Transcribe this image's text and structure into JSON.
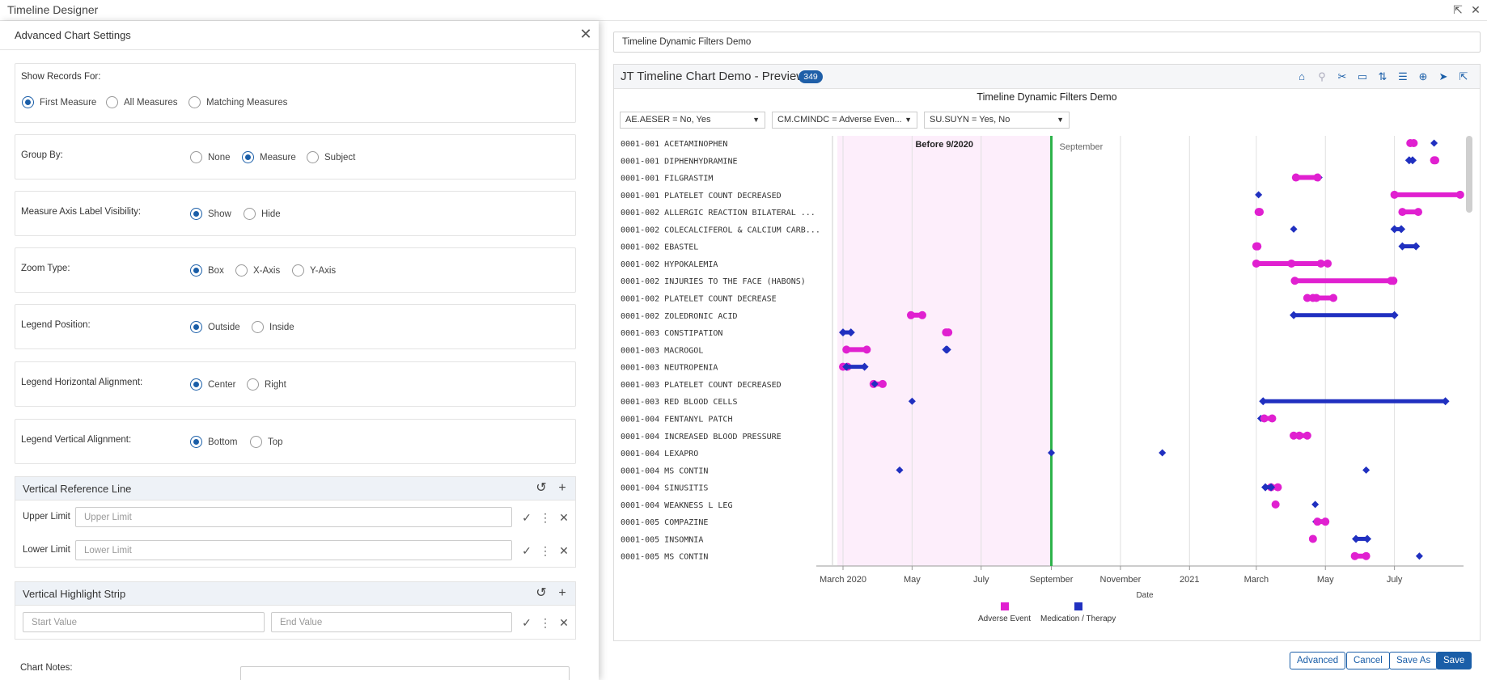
{
  "window": {
    "title": "Timeline Designer",
    "export_icon": "export-icon",
    "close_icon": "close-icon"
  },
  "panel": {
    "title": "Advanced Chart Settings",
    "show_records": {
      "label": "Show Records For:",
      "options": [
        "First Measure",
        "All Measures",
        "Matching Measures"
      ],
      "selected": "First Measure"
    },
    "group_by": {
      "label": "Group By:",
      "options": [
        "None",
        "Measure",
        "Subject"
      ],
      "selected": "Measure"
    },
    "axis_label_visibility": {
      "label": "Measure Axis Label Visibility:",
      "options": [
        "Show",
        "Hide"
      ],
      "selected": "Show"
    },
    "zoom_type": {
      "label": "Zoom Type:",
      "options": [
        "Box",
        "X-Axis",
        "Y-Axis"
      ],
      "selected": "Box"
    },
    "legend_position": {
      "label": "Legend Position:",
      "options": [
        "Outside",
        "Inside"
      ],
      "selected": "Outside"
    },
    "legend_h_align": {
      "label": "Legend Horizontal Alignment:",
      "options": [
        "Center",
        "Right"
      ],
      "selected": "Center"
    },
    "legend_v_align": {
      "label": "Legend Vertical Alignment:",
      "options": [
        "Bottom",
        "Top"
      ],
      "selected": "Bottom"
    },
    "reference_line": {
      "title": "Vertical Reference Line",
      "upper_label": "Upper Limit",
      "upper_placeholder": "Upper Limit",
      "lower_label": "Lower Limit",
      "lower_placeholder": "Lower Limit"
    },
    "highlight_strip": {
      "title": "Vertical Highlight Strip",
      "start_placeholder": "Start Value",
      "end_placeholder": "End Value"
    },
    "chart_notes": {
      "label": "Chart Notes:"
    }
  },
  "filter_name": "Timeline Dynamic Filters Demo",
  "preview": {
    "title": "JT Timeline Chart Demo - Preview",
    "count": "349",
    "toolbar_icons": [
      "shapes-icon",
      "search-icon",
      "tools-icon",
      "comment-icon",
      "swap-icon",
      "sliders-icon",
      "crosshair-icon",
      "pointer-icon",
      "export-icon"
    ],
    "filters": [
      "AE.AESER = No, Yes",
      "CM.CMINDC = Adverse Even...",
      "SU.SUYN = Yes, No"
    ]
  },
  "colors": {
    "accent": "#1a5ea8",
    "adverse_event": "#e020d0",
    "medication": "#2030c0",
    "reference_line": "#2db24a",
    "highlight": "#fdeefb"
  },
  "chart_data": {
    "type": "timeline",
    "title": "Timeline Dynamic Filters Demo",
    "xlabel": "Date",
    "x_ticks": [
      "March 2020",
      "May",
      "July",
      "September",
      "November",
      "2021",
      "March",
      "May",
      "July"
    ],
    "xlim": [
      "2020-02-15",
      "2021-08-31"
    ],
    "reference_line": {
      "date": "2020-09-01",
      "label": "September"
    },
    "highlight_strip": {
      "start": "2020-02-25",
      "end": "2020-09-01",
      "label": "Before 9/2020"
    },
    "legend": [
      {
        "name": "Adverse Event",
        "color": "#e020d0"
      },
      {
        "name": "Medication / Therapy",
        "color": "#2030c0"
      }
    ],
    "rows": [
      {
        "label": "0001-001 ACETAMINOPHEN",
        "marks": [
          {
            "s": "2021-07-15",
            "e": "2021-07-18",
            "t": "AE"
          },
          {
            "s": "2021-08-05",
            "t": "CM"
          }
        ]
      },
      {
        "label": "0001-001 DIPHENHYDRAMINE",
        "marks": [
          {
            "s": "2021-07-14",
            "e": "2021-07-17",
            "t": "CM"
          },
          {
            "s": "2021-08-05",
            "e": "2021-08-06",
            "t": "AE"
          }
        ]
      },
      {
        "label": "0001-001 FILGRASTIM",
        "marks": [
          {
            "s": "2021-04-05",
            "e": "2021-04-25",
            "t": "CM"
          },
          {
            "s": "2021-04-05",
            "e": "2021-04-24",
            "t": "AE"
          }
        ]
      },
      {
        "label": "0001-001 PLATELET COUNT DECREASED",
        "marks": [
          {
            "s": "2021-07-01",
            "e": "2021-08-28",
            "t": "AE"
          },
          {
            "s": "2021-03-03",
            "t": "CM"
          }
        ]
      },
      {
        "label": "0001-002 ALLERGIC REACTION  BILATERAL ...",
        "marks": [
          {
            "s": "2021-07-08",
            "e": "2021-07-22",
            "t": "AE"
          },
          {
            "s": "2021-03-03",
            "e": "2021-03-04",
            "t": "AE"
          }
        ]
      },
      {
        "label": "0001-002 COLECALCIFEROL & CALCIUM CARB...",
        "marks": [
          {
            "s": "2021-04-03",
            "t": "CM"
          },
          {
            "s": "2021-07-01",
            "e": "2021-07-07",
            "t": "CM"
          }
        ]
      },
      {
        "label": "0001-002 EBASTEL",
        "marks": [
          {
            "s": "2021-07-08",
            "e": "2021-07-20",
            "t": "CM"
          },
          {
            "s": "2021-03-01",
            "e": "2021-03-02",
            "t": "AE"
          }
        ]
      },
      {
        "label": "0001-002 HYPOKALEMIA",
        "marks": [
          {
            "s": "2021-03-01",
            "e": "2021-05-03",
            "t": "AE"
          },
          {
            "s": "2021-04-01",
            "e": "2021-04-27",
            "t": "AE"
          }
        ]
      },
      {
        "label": "0001-002 INJURIES TO THE FACE (HABONS)",
        "marks": [
          {
            "s": "2021-06-28",
            "e": "2021-06-30",
            "t": "AE"
          },
          {
            "s": "2021-04-04",
            "e": "2021-06-30",
            "t": "AE"
          }
        ]
      },
      {
        "label": "0001-002 PLATELET COUNT DECREASE",
        "marks": [
          {
            "s": "2021-04-15",
            "e": "2021-04-23",
            "t": "AE"
          },
          {
            "s": "2021-04-20",
            "e": "2021-05-08",
            "t": "AE"
          }
        ]
      },
      {
        "label": "0001-002 ZOLEDRONIC ACID",
        "marks": [
          {
            "s": "2021-04-03",
            "e": "2021-07-01",
            "t": "CM"
          },
          {
            "s": "2020-04-30",
            "e": "2020-05-10",
            "t": "AE"
          }
        ]
      },
      {
        "label": "0001-003 CONSTIPATION",
        "marks": [
          {
            "s": "2020-05-31",
            "e": "2020-06-02",
            "t": "AE"
          },
          {
            "s": "2020-03-01",
            "e": "2020-03-08",
            "t": "CM"
          }
        ]
      },
      {
        "label": "0001-003 MACROGOL",
        "marks": [
          {
            "s": "2020-05-31",
            "e": "2020-06-01",
            "t": "CM"
          },
          {
            "s": "2020-03-04",
            "e": "2020-03-22",
            "t": "AE"
          }
        ]
      },
      {
        "label": "0001-003 NEUTROPENIA",
        "marks": [
          {
            "s": "2020-03-01",
            "e": "2020-03-05",
            "t": "AE"
          },
          {
            "s": "2020-03-04",
            "e": "2020-03-20",
            "t": "CM"
          }
        ]
      },
      {
        "label": "0001-003 PLATELET COUNT DECREASED",
        "marks": [
          {
            "s": "2020-03-28",
            "e": "2020-04-05",
            "t": "AE"
          },
          {
            "s": "2020-03-29",
            "t": "CM"
          }
        ]
      },
      {
        "label": "0001-003 RED BLOOD CELLS",
        "marks": [
          {
            "s": "2020-05-01",
            "t": "CM"
          },
          {
            "s": "2021-03-07",
            "e": "2021-08-15",
            "t": "CM"
          }
        ]
      },
      {
        "label": "0001-004 FENTANYL PATCH",
        "marks": [
          {
            "s": "2021-03-05",
            "t": "CM"
          },
          {
            "s": "2021-03-08",
            "e": "2021-03-15",
            "t": "AE"
          }
        ]
      },
      {
        "label": "0001-004 INCREASED BLOOD PRESSURE",
        "marks": [
          {
            "s": "2021-04-08",
            "e": "2021-04-15",
            "t": "AE"
          },
          {
            "s": "2021-04-03",
            "t": "AE"
          }
        ]
      },
      {
        "label": "0001-004 LEXAPRO",
        "marks": [
          {
            "s": "2020-12-08",
            "t": "CM"
          },
          {
            "s": "2020-09-01",
            "t": "CM"
          }
        ]
      },
      {
        "label": "0001-004 MS CONTIN",
        "marks": [
          {
            "s": "2020-04-20",
            "t": "CM"
          },
          {
            "s": "2021-06-06",
            "t": "CM"
          }
        ]
      },
      {
        "label": "0001-004 SINUSITIS",
        "marks": [
          {
            "s": "2021-03-14",
            "e": "2021-03-20",
            "t": "AE"
          },
          {
            "s": "2021-03-09",
            "e": "2021-03-14",
            "t": "CM"
          }
        ]
      },
      {
        "label": "0001-004 WEAKNESS L LEG",
        "marks": [
          {
            "s": "2021-03-18",
            "t": "AE"
          },
          {
            "s": "2021-04-22",
            "t": "CM"
          }
        ]
      },
      {
        "label": "0001-005 COMPAZINE",
        "marks": [
          {
            "s": "2021-04-23",
            "e": "2021-04-30",
            "t": "CM"
          },
          {
            "s": "2021-04-24",
            "e": "2021-05-01",
            "t": "AE"
          }
        ]
      },
      {
        "label": "0001-005 INSOMNIA",
        "marks": [
          {
            "s": "2021-04-20",
            "t": "AE"
          },
          {
            "s": "2021-05-28",
            "e": "2021-06-07",
            "t": "CM"
          }
        ]
      },
      {
        "label": "0001-005 MS CONTIN",
        "marks": [
          {
            "s": "2021-07-23",
            "t": "CM"
          },
          {
            "s": "2021-05-27",
            "e": "2021-06-06",
            "t": "AE"
          }
        ]
      }
    ]
  },
  "buttons": {
    "advanced": "Advanced",
    "cancel": "Cancel",
    "save_as": "Save As",
    "save": "Save"
  }
}
